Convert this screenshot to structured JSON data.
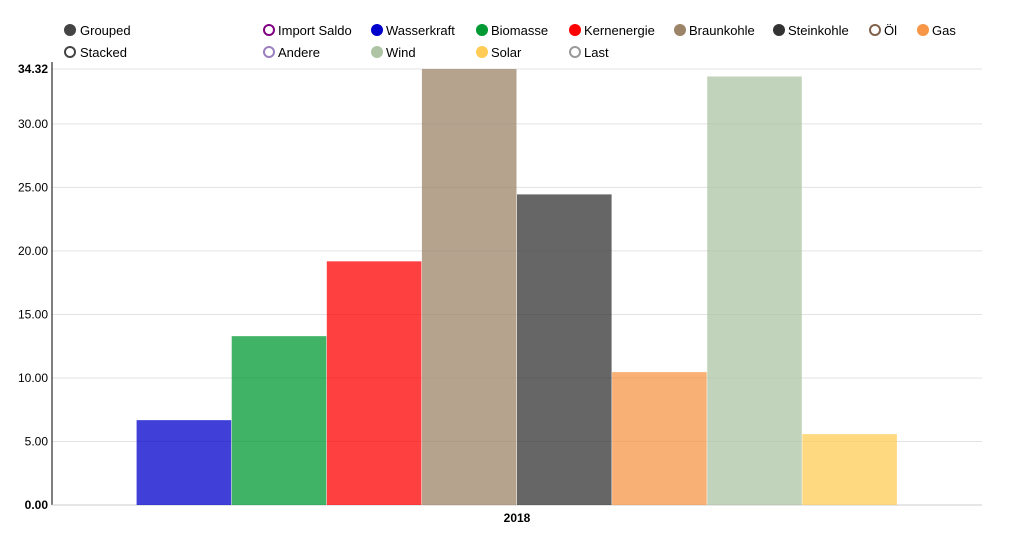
{
  "controls": [
    {
      "label": "Grouped",
      "selected": true
    },
    {
      "label": "Stacked",
      "selected": false
    }
  ],
  "legend": [
    {
      "label": "Import Saldo",
      "color": "#800080",
      "filled": false
    },
    {
      "label": "Wasserkraft",
      "color": "#0000cc",
      "filled": true
    },
    {
      "label": "Biomasse",
      "color": "#009933",
      "filled": true
    },
    {
      "label": "Kernenergie",
      "color": "#ff0000",
      "filled": true
    },
    {
      "label": "Braunkohle",
      "color": "#9c8468",
      "filled": true
    },
    {
      "label": "Steinkohle",
      "color": "#333333",
      "filled": true
    },
    {
      "label": "Öl",
      "color": "#80604a",
      "filled": false
    },
    {
      "label": "Gas",
      "color": "#f79646",
      "filled": true
    },
    {
      "label": "Andere",
      "color": "#9b7fbf",
      "filled": false
    },
    {
      "label": "Wind",
      "color": "#aec4a4",
      "filled": true
    },
    {
      "label": "Solar",
      "color": "#ffcc55",
      "filled": true
    },
    {
      "label": "Last",
      "color": "#999999",
      "filled": false
    }
  ],
  "chart_data": {
    "type": "bar",
    "categories": [
      "2018"
    ],
    "series": [
      {
        "name": "Wasserkraft",
        "color": "#0000cc",
        "values": [
          6.68
        ]
      },
      {
        "name": "Biomasse",
        "color": "#009933",
        "values": [
          13.29
        ]
      },
      {
        "name": "Kernenergie",
        "color": "#ff0000",
        "values": [
          19.18
        ]
      },
      {
        "name": "Braunkohle",
        "color": "#9c8468",
        "values": [
          34.32
        ]
      },
      {
        "name": "Steinkohle",
        "color": "#333333",
        "values": [
          24.45
        ]
      },
      {
        "name": "Gas",
        "color": "#f79646",
        "values": [
          10.46
        ]
      },
      {
        "name": "Wind",
        "color": "#aec4a4",
        "values": [
          33.73
        ]
      },
      {
        "name": "Solar",
        "color": "#ffcc55",
        "values": [
          5.58
        ]
      }
    ],
    "ylim": [
      0,
      34.32
    ],
    "yticks": [
      "0.00",
      "5.00",
      "10.00",
      "15.00",
      "20.00",
      "25.00",
      "30.00",
      "34.32"
    ],
    "grid": true,
    "legend_position": "top"
  }
}
